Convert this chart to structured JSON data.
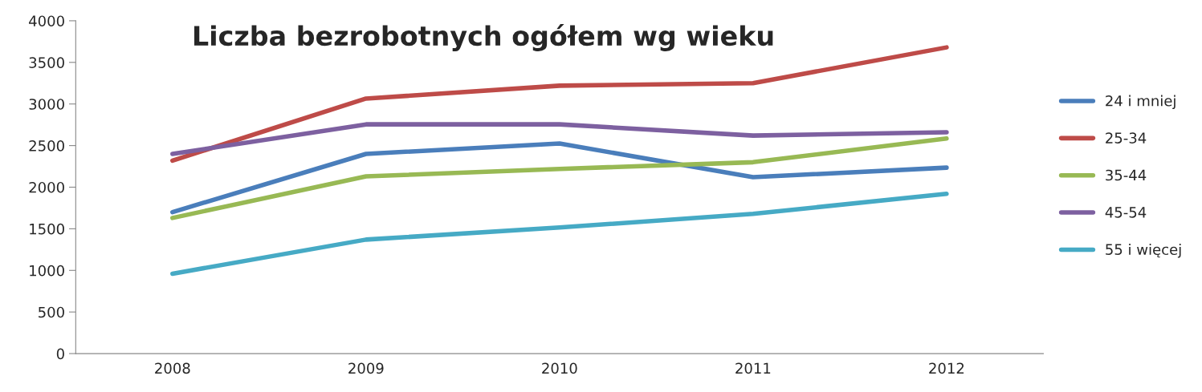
{
  "chart_data": {
    "type": "line",
    "title": "Liczba bezrobotnych ogółem wg wieku",
    "categories": [
      "2008",
      "2009",
      "2010",
      "2011",
      "2012"
    ],
    "series": [
      {
        "name": "24 i mniej",
        "color": "#4a7ebb",
        "values": [
          1700,
          2400,
          2525,
          2120,
          2235
        ]
      },
      {
        "name": "25-34",
        "color": "#be4b48",
        "values": [
          2320,
          3065,
          3220,
          3250,
          3680
        ]
      },
      {
        "name": "35-44",
        "color": "#98b954",
        "values": [
          1630,
          2130,
          2220,
          2300,
          2585
        ]
      },
      {
        "name": "45-54",
        "color": "#7d60a0",
        "values": [
          2400,
          2755,
          2755,
          2620,
          2660
        ]
      },
      {
        "name": "55 i więcej",
        "color": "#46aac5",
        "values": [
          960,
          1370,
          1515,
          1680,
          1920
        ]
      }
    ],
    "ylim": [
      0,
      4000
    ],
    "yticks": [
      0,
      500,
      1000,
      1500,
      2000,
      2500,
      3000,
      3500,
      4000
    ],
    "grid": false,
    "legend": "right",
    "marker": "none",
    "line_style": "solid"
  }
}
